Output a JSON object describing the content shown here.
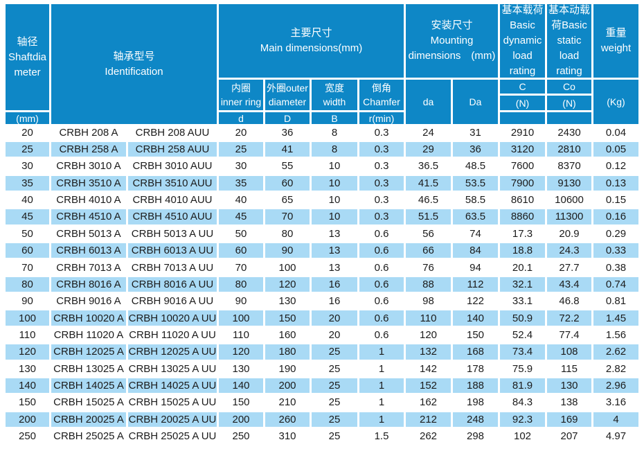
{
  "colors": {
    "header_blue": "#0e87c6",
    "stripe_blue": "#a9daf5",
    "grid_line": "#ffffff",
    "header_text": "#ffffff",
    "data_text": "#1b1b1b"
  },
  "header": {
    "shaft_diameter": {
      "label": "轴径\nShaftdia\nmeter",
      "unit": "(mm)"
    },
    "identification": {
      "label": "轴承型号\nIdentification"
    },
    "main_dimensions": {
      "label": "主要尺寸\nMain dimensions(mm)",
      "inner_ring": {
        "name": "内圈\ninner ring",
        "symbol": "d"
      },
      "outer_diameter": {
        "name": "外圈outer\ndiameter",
        "symbol": "D"
      },
      "width": {
        "name": "宽度\nwidth",
        "symbol": "B"
      },
      "chamfer": {
        "name": "倒角\nChamfer",
        "symbol": "r(min)"
      }
    },
    "mounting_dimensions": {
      "label": "安装尺寸\nMounting\ndimensions　(mm)",
      "da": "da",
      "Da": "Da"
    },
    "basic_dynamic_load": {
      "label": "基本载荷\nBasic\ndynamic\nload\nrating",
      "symbol": "C",
      "unit": "(N)"
    },
    "basic_static_load": {
      "label": "基本动载\n荷Basic\nstatic\nload\nrating",
      "symbol": "Co",
      "unit": "(N)"
    },
    "weight": {
      "label": "重量\nweight",
      "unit": "(Kg)"
    }
  },
  "chart_data": {
    "type": "table",
    "title": "CRBH crossed roller bearing specifications",
    "columns": [
      "Shaft diameter (mm)",
      "Identification A",
      "Identification A UU",
      "inner ring d",
      "outer diameter D",
      "width B",
      "Chamfer r(min)",
      "da",
      "Da",
      "Basic dynamic load rating C (N)",
      "Basic static load rating Co (N)",
      "weight (Kg)"
    ],
    "rows": [
      [
        "20",
        "CRBH 208 A",
        "CRBH 208 AUU",
        "20",
        "36",
        "8",
        "0.3",
        "24",
        "31",
        "2910",
        "2430",
        "0.04"
      ],
      [
        "25",
        "CRBH 258 A",
        "CRBH 258 AUU",
        "25",
        "41",
        "8",
        "0.3",
        "29",
        "36",
        "3120",
        "2810",
        "0.05"
      ],
      [
        "30",
        "CRBH 3010 A",
        "CRBH 3010 AUU",
        "30",
        "55",
        "10",
        "0.3",
        "36.5",
        "48.5",
        "7600",
        "8370",
        "0.12"
      ],
      [
        "35",
        "CRBH 3510 A",
        "CRBH 3510 AUU",
        "35",
        "60",
        "10",
        "0.3",
        "41.5",
        "53.5",
        "7900",
        "9130",
        "0.13"
      ],
      [
        "40",
        "CRBH 4010 A",
        "CRBH 4010 AUU",
        "40",
        "65",
        "10",
        "0.3",
        "46.5",
        "58.5",
        "8610",
        "10600",
        "0.15"
      ],
      [
        "45",
        "CRBH 4510 A",
        "CRBH 4510 AUU",
        "45",
        "70",
        "10",
        "0.3",
        "51.5",
        "63.5",
        "8860",
        "11300",
        "0.16"
      ],
      [
        "50",
        "CRBH 5013 A",
        "CRBH 5013 A UU",
        "50",
        "80",
        "13",
        "0.6",
        "56",
        "74",
        "17.3",
        "20.9",
        "0.29"
      ],
      [
        "60",
        "CRBH 6013 A",
        "CRBH 6013 A UU",
        "60",
        "90",
        "13",
        "0.6",
        "66",
        "84",
        "18.8",
        "24.3",
        "0.33"
      ],
      [
        "70",
        "CRBH 7013 A",
        "CRBH 7013 A UU",
        "70",
        "100",
        "13",
        "0.6",
        "76",
        "94",
        "20.1",
        "27.7",
        "0.38"
      ],
      [
        "80",
        "CRBH 8016 A",
        "CRBH 8016 A UU",
        "80",
        "120",
        "16",
        "0.6",
        "88",
        "112",
        "32.1",
        "43.4",
        "0.74"
      ],
      [
        "90",
        "CRBH 9016 A",
        "CRBH 9016 A UU",
        "90",
        "130",
        "16",
        "0.6",
        "98",
        "122",
        "33.1",
        "46.8",
        "0.81"
      ],
      [
        "100",
        "CRBH 10020 A",
        "CRBH 10020 A UU",
        "100",
        "150",
        "20",
        "0.6",
        "110",
        "140",
        "50.9",
        "72.2",
        "1.45"
      ],
      [
        "110",
        "CRBH 11020 A",
        "CRBH 11020 A UU",
        "110",
        "160",
        "20",
        "0.6",
        "120",
        "150",
        "52.4",
        "77.4",
        "1.56"
      ],
      [
        "120",
        "CRBH 12025 A",
        "CRBH 12025 A UU",
        "120",
        "180",
        "25",
        "1",
        "132",
        "168",
        "73.4",
        "108",
        "2.62"
      ],
      [
        "130",
        "CRBH 13025 A",
        "CRBH 13025 A UU",
        "130",
        "190",
        "25",
        "1",
        "142",
        "178",
        "75.9",
        "115",
        "2.82"
      ],
      [
        "140",
        "CRBH 14025 A",
        "CRBH 14025 A UU",
        "140",
        "200",
        "25",
        "1",
        "152",
        "188",
        "81.9",
        "130",
        "2.96"
      ],
      [
        "150",
        "CRBH 15025 A",
        "CRBH 15025 A UU",
        "150",
        "210",
        "25",
        "1",
        "162",
        "198",
        "84.3",
        "138",
        "3.16"
      ],
      [
        "200",
        "CRBH 20025 A",
        "CRBH 20025 A UU",
        "200",
        "260",
        "25",
        "1",
        "212",
        "248",
        "92.3",
        "169",
        "4"
      ],
      [
        "250",
        "CRBH 25025 A",
        "CRBH 25025 A UU",
        "250",
        "310",
        "25",
        "1.5",
        "262",
        "298",
        "102",
        "207",
        "4.97"
      ]
    ]
  }
}
